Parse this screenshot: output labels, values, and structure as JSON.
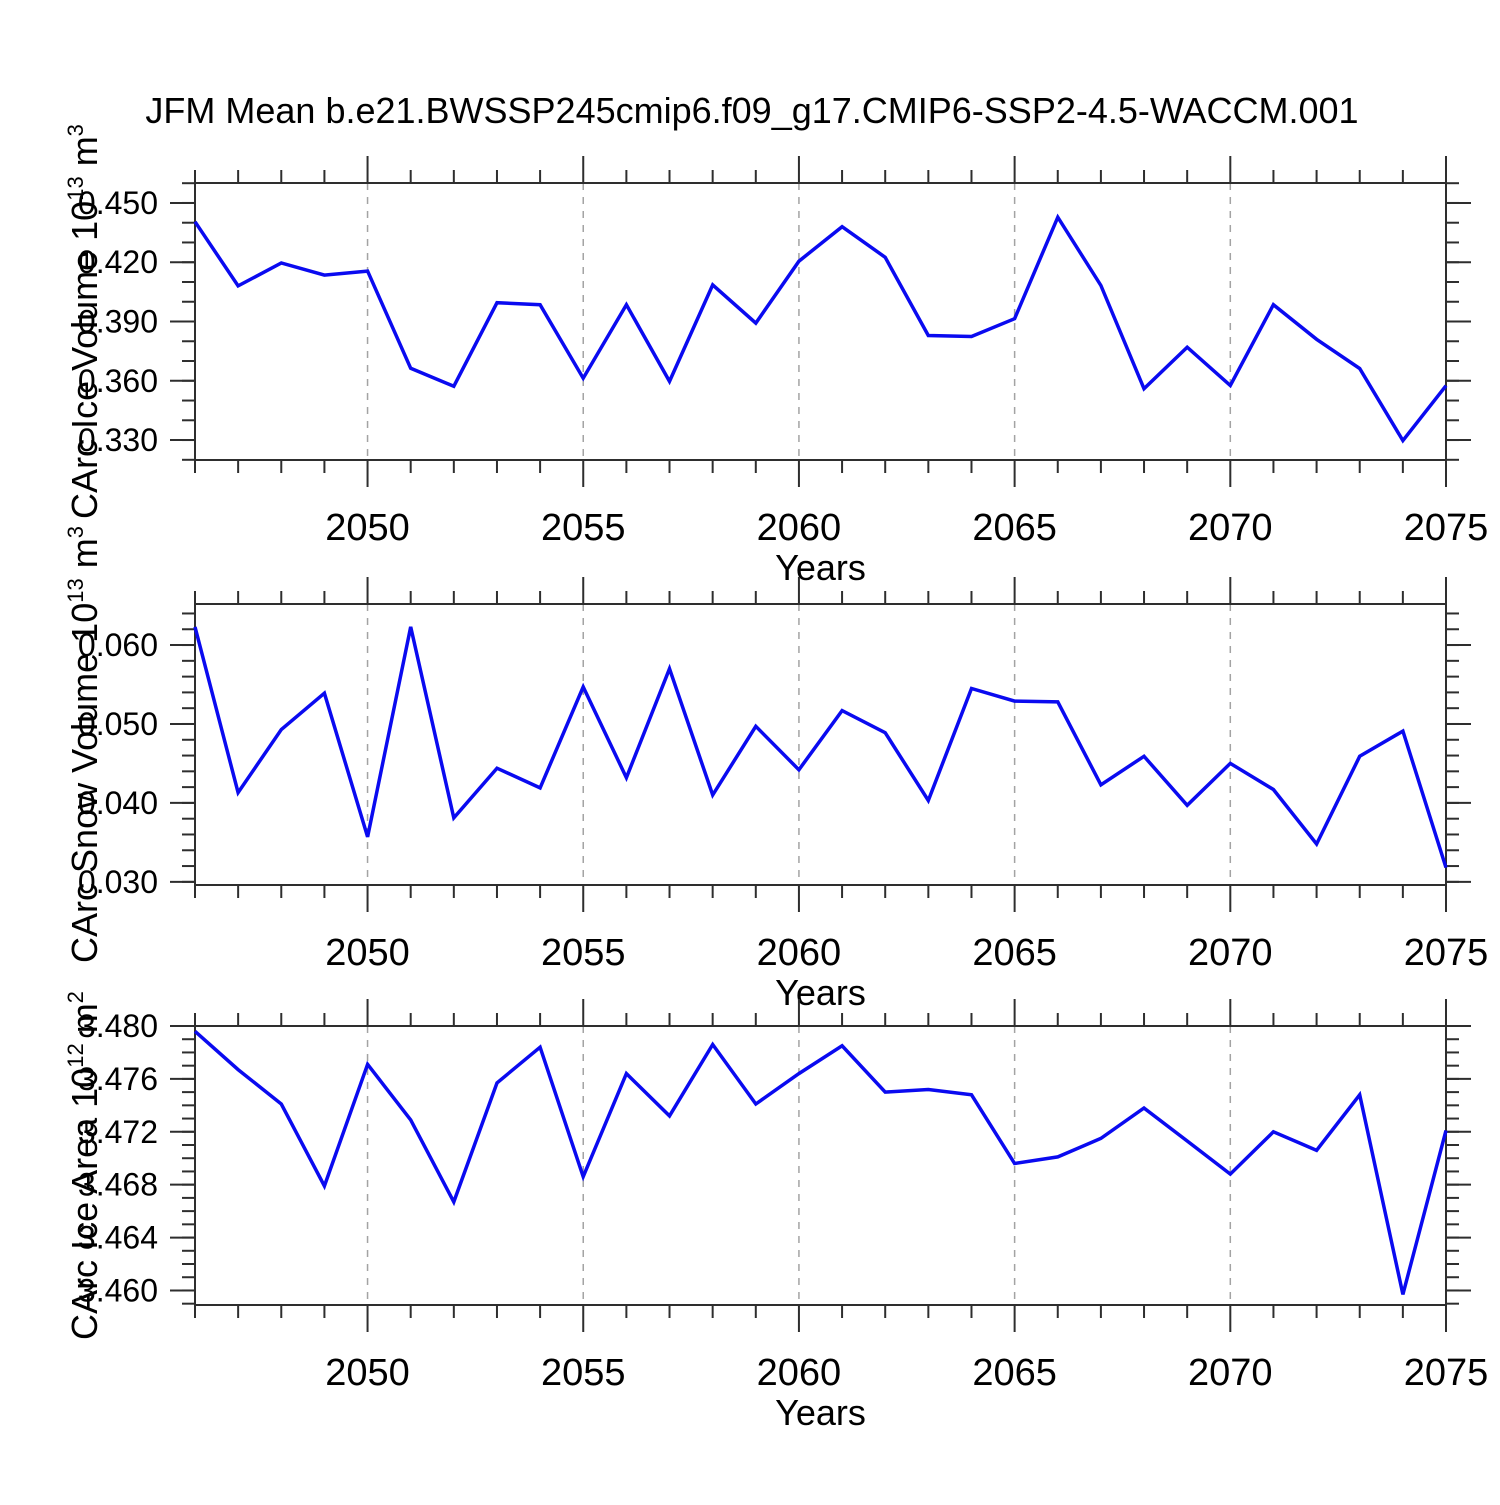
{
  "title": "JFM Mean b.e21.BWSSP245cmip6.f09_g17.CMIP6-SSP2-4.5-WACCM.001",
  "colors": {
    "line": "#0a0af0",
    "grid": "#a3a3a3",
    "axis": "#2e2e2e",
    "text": "#000000",
    "background": "#ffffff"
  },
  "x_axis": {
    "label": "Years",
    "min": 2046,
    "max": 2075,
    "major_ticks": [
      2050,
      2055,
      2060,
      2065,
      2070,
      2075
    ],
    "minor_step": 1
  },
  "chart_data": [
    {
      "type": "line",
      "id": "ice-volume",
      "ylabel_segments": [
        [
          "CArc Ice Volume 10",
          false
        ],
        [
          "13",
          true
        ],
        [
          " m",
          false
        ],
        [
          "3",
          true
        ]
      ],
      "xlabel": "Years",
      "y_axis": {
        "min": 0.3199,
        "max": 0.4601,
        "major_ticks": [
          0.45,
          0.42,
          0.39,
          0.36,
          0.33
        ],
        "minor_step": 0.01,
        "tick_decimals": 3
      },
      "grid": "vertical-dashed",
      "x": [
        2046,
        2047,
        2048,
        2049,
        2050,
        2051,
        2052,
        2053,
        2054,
        2055,
        2056,
        2057,
        2058,
        2059,
        2060,
        2061,
        2062,
        2063,
        2064,
        2065,
        2066,
        2067,
        2068,
        2069,
        2070,
        2071,
        2072,
        2073,
        2074,
        2075
      ],
      "values": [
        0.4405,
        0.408,
        0.4196,
        0.4135,
        0.4155,
        0.3663,
        0.3572,
        0.3995,
        0.3985,
        0.3613,
        0.3985,
        0.3597,
        0.4085,
        0.3892,
        0.4205,
        0.438,
        0.4225,
        0.3829,
        0.3824,
        0.3914,
        0.4428,
        0.4082,
        0.356,
        0.377,
        0.3576,
        0.3985,
        0.381,
        0.3662,
        0.3297,
        0.3575
      ]
    },
    {
      "type": "line",
      "id": "snow-volume",
      "ylabel_segments": [
        [
          "CArc Snow Volume 10",
          false
        ],
        [
          "13",
          true
        ],
        [
          " m",
          false
        ],
        [
          "3",
          true
        ]
      ],
      "xlabel": "Years",
      "y_axis": {
        "min": 0.0296,
        "max": 0.0652,
        "major_ticks": [
          0.06,
          0.05,
          0.04,
          0.03
        ],
        "minor_step": 0.002,
        "tick_decimals": 3
      },
      "grid": "vertical-dashed",
      "x": [
        2046,
        2047,
        2048,
        2049,
        2050,
        2051,
        2052,
        2053,
        2054,
        2055,
        2056,
        2057,
        2058,
        2059,
        2060,
        2061,
        2062,
        2063,
        2064,
        2065,
        2066,
        2067,
        2068,
        2069,
        2070,
        2071,
        2072,
        2073,
        2074,
        2075
      ],
      "values": [
        0.0623,
        0.0413,
        0.0493,
        0.0539,
        0.0357,
        0.0623,
        0.0381,
        0.0444,
        0.0419,
        0.0547,
        0.0432,
        0.057,
        0.041,
        0.0497,
        0.0442,
        0.0517,
        0.0489,
        0.0403,
        0.0545,
        0.0529,
        0.0528,
        0.0423,
        0.0459,
        0.0397,
        0.045,
        0.0417,
        0.0348,
        0.0459,
        0.0491,
        0.0318
      ]
    },
    {
      "type": "line",
      "id": "ice-area",
      "ylabel_segments": [
        [
          "CArc Ice Area 10",
          false
        ],
        [
          "12",
          true
        ],
        [
          " m",
          false
        ],
        [
          "2",
          true
        ]
      ],
      "xlabel": "Years",
      "y_axis": {
        "min": 3.4589,
        "max": 3.48,
        "major_ticks": [
          3.48,
          3.476,
          3.472,
          3.468,
          3.464,
          3.46
        ],
        "minor_step": 0.001,
        "tick_decimals": 3
      },
      "grid": "vertical-dashed",
      "x": [
        2046,
        2047,
        2048,
        2049,
        2050,
        2051,
        2052,
        2053,
        2054,
        2055,
        2056,
        2057,
        2058,
        2059,
        2060,
        2061,
        2062,
        2063,
        2064,
        2065,
        2066,
        2067,
        2068,
        2069,
        2070,
        2071,
        2072,
        2073,
        2074,
        2075
      ],
      "values": [
        3.4796,
        3.4767,
        3.4741,
        3.4679,
        3.4771,
        3.4729,
        3.4667,
        3.4757,
        3.4784,
        3.4686,
        3.4764,
        3.4732,
        3.4786,
        3.4741,
        3.4764,
        3.4785,
        3.475,
        3.4752,
        3.4748,
        3.4696,
        3.4701,
        3.4715,
        3.4738,
        3.4713,
        3.4688,
        3.472,
        3.4706,
        3.4748,
        3.4597,
        3.4721
      ]
    }
  ]
}
